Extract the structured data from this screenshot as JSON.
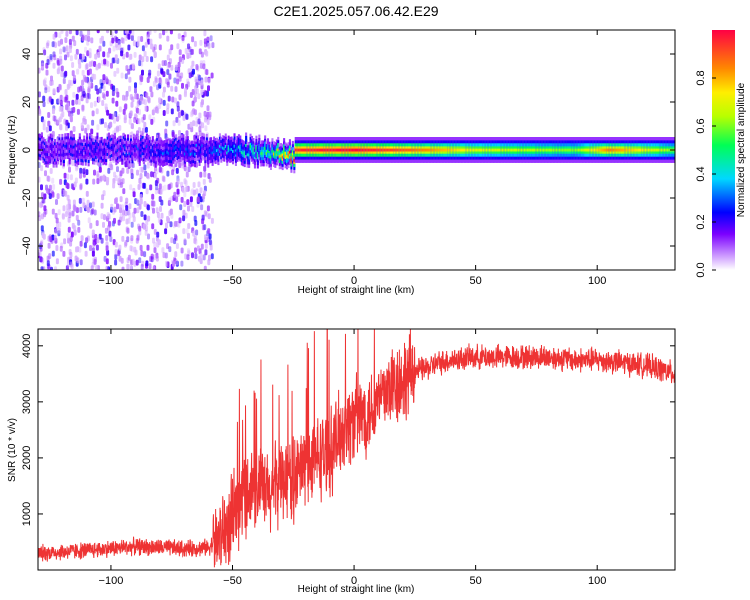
{
  "figure": {
    "title": "C2E1.2025.057.06.42.E29"
  },
  "chart_data": [
    {
      "type": "heatmap",
      "title": "C2E1.2025.057.06.42.E29",
      "xlabel": "Height of straight line (km)",
      "ylabel": "Frequency (Hz)",
      "xlim": [
        -130,
        132
      ],
      "ylim": [
        -50,
        50
      ],
      "xticks": [
        -100,
        -50,
        0,
        50,
        100
      ],
      "yticks": [
        -40,
        -20,
        0,
        20,
        40
      ],
      "colorbar": {
        "label": "Normalized spectral amplitude",
        "range": [
          0,
          1
        ],
        "ticks": [
          0,
          0.2,
          0.4,
          0.6,
          0.8
        ],
        "tick_labels": [
          "0.0",
          "0.2",
          "0.4",
          "0.6",
          "0.8"
        ],
        "colormap": "rainbow (purple-blue-cyan-green-yellow-orange-red)"
      },
      "features": {
        "noise_region_x": [
          -130,
          -58
        ],
        "central_band_frequency_hz": 0,
        "central_band_halfwidth_hz": 4,
        "band_amplitude_profile": [
          {
            "x": -130,
            "amp": 0.2
          },
          {
            "x": -60,
            "amp": 0.3
          },
          {
            "x": -40,
            "amp": 0.5
          },
          {
            "x": -25,
            "amp": 0.95
          },
          {
            "x": 0,
            "amp": 1.0
          },
          {
            "x": 20,
            "amp": 0.9
          },
          {
            "x": 50,
            "amp": 0.7
          },
          {
            "x": 90,
            "amp": 0.6
          },
          {
            "x": 105,
            "amp": 0.85
          },
          {
            "x": 132,
            "amp": 0.6
          }
        ]
      },
      "grid": false
    },
    {
      "type": "line",
      "xlabel": "Height of straight line (km)",
      "ylabel": "SNR (10 * v/v)",
      "xlim": [
        -130,
        132
      ],
      "ylim": [
        0,
        4300
      ],
      "xticks": [
        -100,
        -50,
        0,
        50,
        100
      ],
      "yticks": [
        1000,
        2000,
        3000,
        4000
      ],
      "color": "#ee3333",
      "series": [
        {
          "x": [
            -130,
            -110,
            -90,
            -70,
            -60,
            -55,
            -50,
            -45,
            -40,
            -35,
            -30,
            -25,
            -20,
            -15,
            -10,
            -5,
            0,
            5,
            10,
            15,
            20,
            25,
            30,
            35,
            40,
            50,
            60,
            70,
            80,
            90,
            100,
            110,
            120,
            132
          ],
          "values": [
            300,
            350,
            420,
            380,
            400,
            600,
            900,
            1400,
            1500,
            1300,
            1700,
            1600,
            1900,
            2000,
            2100,
            2500,
            2700,
            2800,
            3000,
            3300,
            3400,
            3550,
            3600,
            3700,
            3750,
            3800,
            3800,
            3800,
            3800,
            3750,
            3750,
            3700,
            3650,
            3500
          ]
        }
      ],
      "grid": false
    }
  ]
}
